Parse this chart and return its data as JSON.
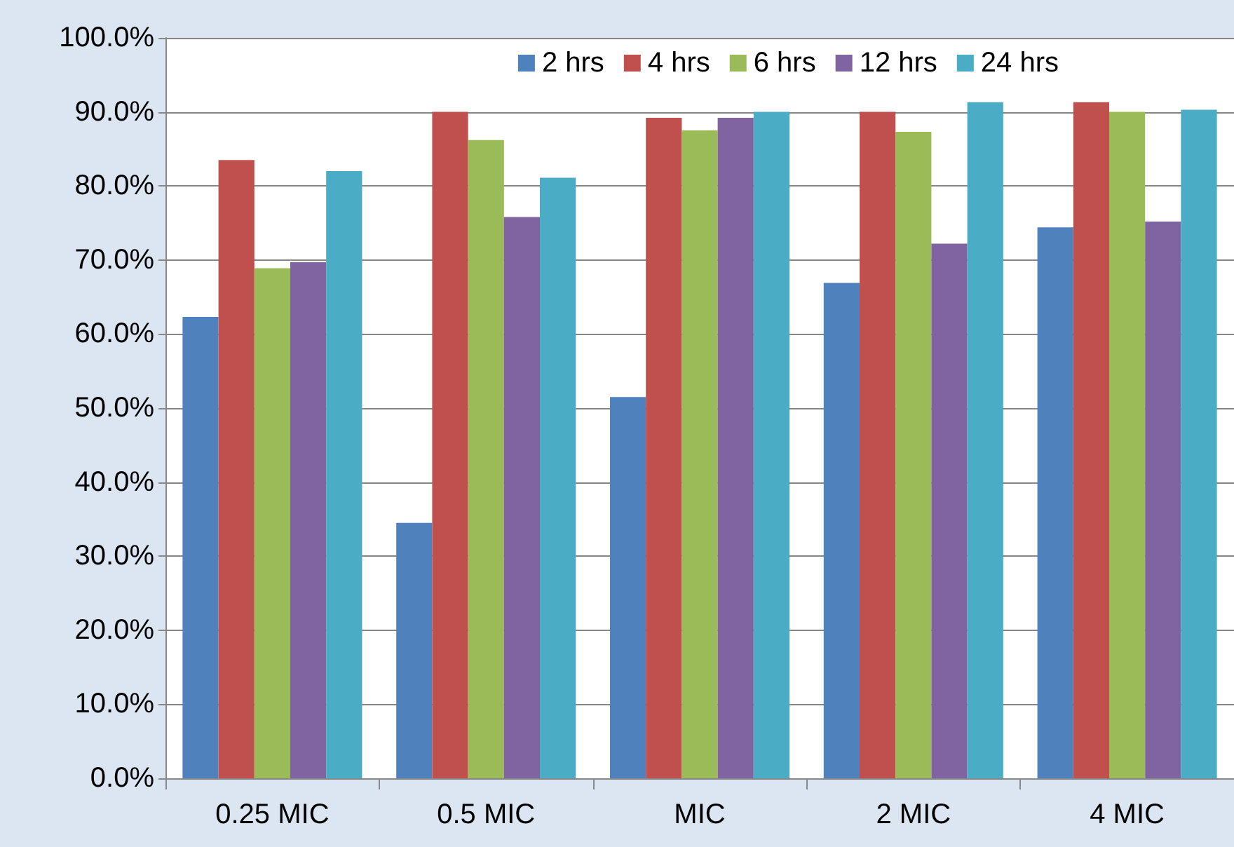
{
  "chart_data": {
    "type": "bar",
    "categories": [
      "0.25 MIC",
      "0.5 MIC",
      "MIC",
      "2 MIC",
      "4 MIC"
    ],
    "series": [
      {
        "name": "2 hrs",
        "color": "#4f81bd",
        "values": [
          62.3,
          34.5,
          51.5,
          66.9,
          74.4
        ]
      },
      {
        "name": "4 hrs",
        "color": "#c0504d",
        "values": [
          83.5,
          90.0,
          89.2,
          90.0,
          91.3
        ]
      },
      {
        "name": "6 hrs",
        "color": "#9bbb59",
        "values": [
          68.9,
          86.2,
          87.5,
          87.3,
          90.0
        ]
      },
      {
        "name": "12 hrs",
        "color": "#8064a2",
        "values": [
          69.7,
          75.8,
          89.2,
          72.2,
          75.2
        ]
      },
      {
        "name": "24 hrs",
        "color": "#4bacc6",
        "values": [
          82.0,
          81.1,
          90.0,
          91.3,
          90.3
        ]
      }
    ],
    "ylim": [
      0,
      100
    ],
    "yticks": [
      {
        "value": 0,
        "label": "0.0%"
      },
      {
        "value": 10,
        "label": "10.0%"
      },
      {
        "value": 20,
        "label": "20.0%"
      },
      {
        "value": 30,
        "label": "30.0%"
      },
      {
        "value": 40,
        "label": "40.0%"
      },
      {
        "value": 50,
        "label": "50.0%"
      },
      {
        "value": 60,
        "label": "60.0%"
      },
      {
        "value": 70,
        "label": "70.0%"
      },
      {
        "value": 80,
        "label": "80.0%"
      },
      {
        "value": 90,
        "label": "90.0%"
      },
      {
        "value": 100,
        "label": "100.0%"
      }
    ],
    "grid": "y",
    "legend": "top right"
  }
}
